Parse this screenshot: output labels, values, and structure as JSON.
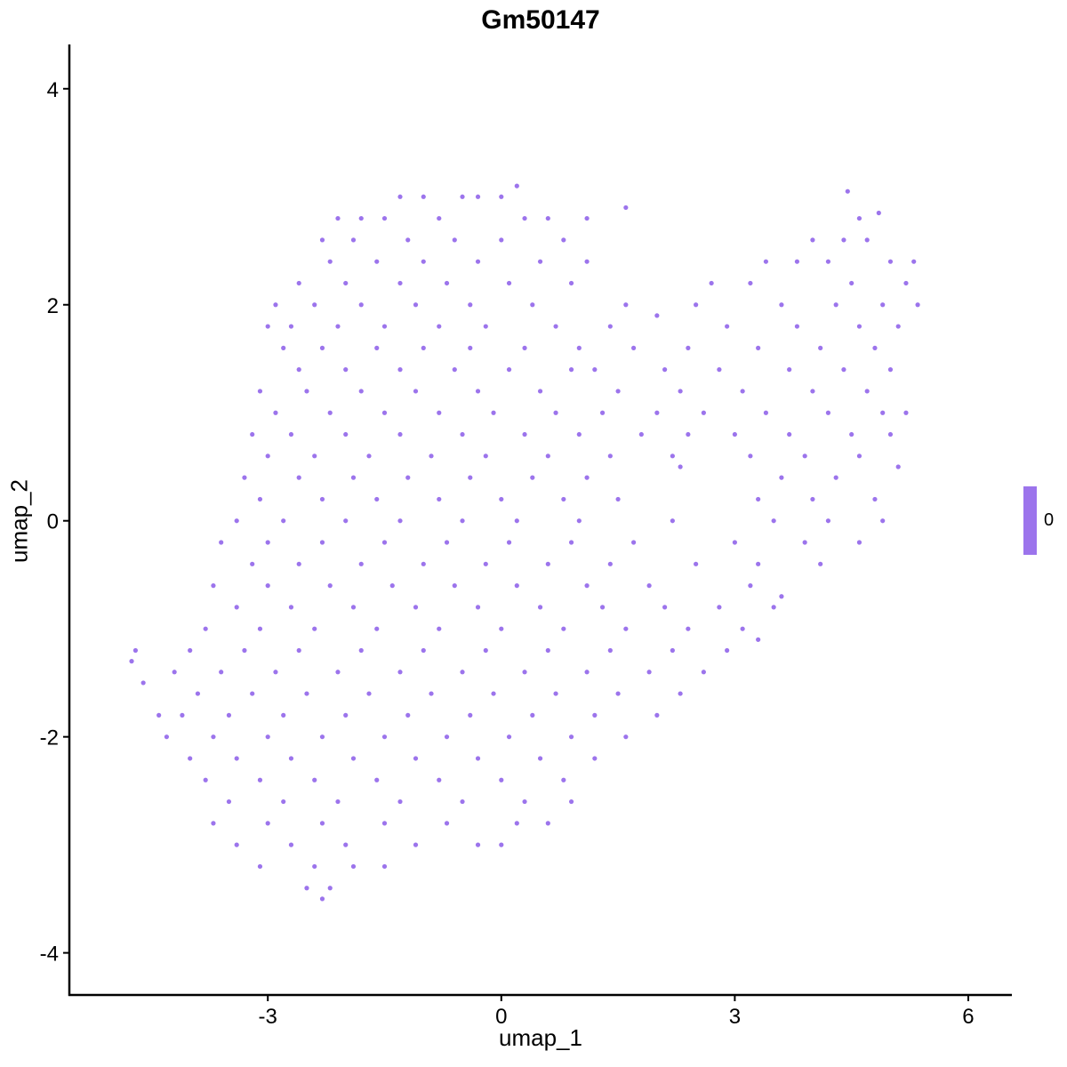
{
  "chart_data": {
    "type": "scatter",
    "title": "Gm50147",
    "xlabel": "umap_1",
    "ylabel": "umap_2",
    "xlim": [
      -5.55,
      6.56
    ],
    "ylim": [
      -4.39,
      4.41
    ],
    "xticks": [
      -3,
      0,
      3,
      6
    ],
    "yticks": [
      -4,
      -2,
      0,
      2,
      4
    ],
    "xtick_labels": [
      "-3",
      "0",
      "3",
      "6"
    ],
    "ytick_labels": [
      "-4",
      "-2",
      "0",
      "2",
      "4"
    ],
    "grid": false,
    "point_color": "#9C74EC",
    "legend": {
      "position": "right",
      "type": "colorbar",
      "labels": [
        "0"
      ],
      "color": "#9C74EC"
    },
    "points": [
      [
        -4.7,
        -1.2
      ],
      [
        -4.75,
        -1.3
      ],
      [
        -4.6,
        -1.5
      ],
      [
        -4.4,
        -1.8
      ],
      [
        -1.0,
        3.0
      ],
      [
        -0.5,
        3.0
      ],
      [
        0.0,
        3.0
      ],
      [
        0.2,
        3.1
      ],
      [
        -1.3,
        3.0
      ],
      [
        -0.3,
        3.0
      ],
      [
        4.45,
        3.05
      ],
      [
        -2.1,
        2.8
      ],
      [
        -1.8,
        2.8
      ],
      [
        -1.5,
        2.8
      ],
      [
        -0.8,
        2.8
      ],
      [
        0.3,
        2.8
      ],
      [
        0.6,
        2.8
      ],
      [
        1.1,
        2.8
      ],
      [
        1.6,
        2.9
      ],
      [
        4.6,
        2.8
      ],
      [
        4.85,
        2.85
      ],
      [
        -2.3,
        2.6
      ],
      [
        -1.9,
        2.6
      ],
      [
        -1.2,
        2.6
      ],
      [
        -0.6,
        2.6
      ],
      [
        0.0,
        2.6
      ],
      [
        0.8,
        2.6
      ],
      [
        4.0,
        2.6
      ],
      [
        4.4,
        2.6
      ],
      [
        4.7,
        2.6
      ],
      [
        -2.2,
        2.4
      ],
      [
        -1.6,
        2.4
      ],
      [
        -1.0,
        2.4
      ],
      [
        -0.3,
        2.4
      ],
      [
        0.5,
        2.4
      ],
      [
        1.1,
        2.4
      ],
      [
        3.4,
        2.4
      ],
      [
        3.8,
        2.4
      ],
      [
        4.2,
        2.4
      ],
      [
        5.0,
        2.4
      ],
      [
        5.3,
        2.4
      ],
      [
        -2.6,
        2.2
      ],
      [
        -2.0,
        2.2
      ],
      [
        -1.3,
        2.2
      ],
      [
        -0.7,
        2.2
      ],
      [
        0.1,
        2.2
      ],
      [
        0.9,
        2.2
      ],
      [
        2.7,
        2.2
      ],
      [
        3.2,
        2.2
      ],
      [
        4.5,
        2.2
      ],
      [
        5.2,
        2.2
      ],
      [
        -2.9,
        2.0
      ],
      [
        -2.4,
        2.0
      ],
      [
        -1.8,
        2.0
      ],
      [
        -1.1,
        2.0
      ],
      [
        -0.4,
        2.0
      ],
      [
        0.4,
        2.0
      ],
      [
        1.6,
        2.0
      ],
      [
        2.5,
        2.0
      ],
      [
        3.6,
        2.0
      ],
      [
        4.3,
        2.0
      ],
      [
        4.9,
        2.0
      ],
      [
        5.35,
        2.0
      ],
      [
        -3.0,
        1.8
      ],
      [
        -2.7,
        1.8
      ],
      [
        -2.1,
        1.8
      ],
      [
        -1.5,
        1.8
      ],
      [
        -0.8,
        1.8
      ],
      [
        -0.2,
        1.8
      ],
      [
        0.7,
        1.8
      ],
      [
        1.4,
        1.8
      ],
      [
        2.0,
        1.9
      ],
      [
        2.9,
        1.8
      ],
      [
        3.8,
        1.8
      ],
      [
        4.6,
        1.8
      ],
      [
        5.1,
        1.8
      ],
      [
        -2.8,
        1.6
      ],
      [
        -2.3,
        1.6
      ],
      [
        -1.6,
        1.6
      ],
      [
        -1.0,
        1.6
      ],
      [
        -0.4,
        1.6
      ],
      [
        0.3,
        1.6
      ],
      [
        1.0,
        1.6
      ],
      [
        1.7,
        1.6
      ],
      [
        2.4,
        1.6
      ],
      [
        3.3,
        1.6
      ],
      [
        4.1,
        1.6
      ],
      [
        4.8,
        1.6
      ],
      [
        -2.6,
        1.4
      ],
      [
        -2.0,
        1.4
      ],
      [
        -1.3,
        1.4
      ],
      [
        -0.6,
        1.4
      ],
      [
        0.1,
        1.4
      ],
      [
        0.9,
        1.4
      ],
      [
        1.2,
        1.4
      ],
      [
        2.1,
        1.4
      ],
      [
        2.8,
        1.4
      ],
      [
        3.7,
        1.4
      ],
      [
        4.4,
        1.4
      ],
      [
        5.0,
        1.4
      ],
      [
        -3.1,
        1.2
      ],
      [
        -2.5,
        1.2
      ],
      [
        -1.8,
        1.2
      ],
      [
        -1.1,
        1.2
      ],
      [
        -0.3,
        1.2
      ],
      [
        0.5,
        1.2
      ],
      [
        1.5,
        1.2
      ],
      [
        2.3,
        1.2
      ],
      [
        3.1,
        1.2
      ],
      [
        4.0,
        1.2
      ],
      [
        4.7,
        1.2
      ],
      [
        -2.9,
        1.0
      ],
      [
        -2.2,
        1.0
      ],
      [
        -1.5,
        1.0
      ],
      [
        -0.8,
        1.0
      ],
      [
        -0.1,
        1.0
      ],
      [
        0.7,
        1.0
      ],
      [
        1.3,
        1.0
      ],
      [
        2.0,
        1.0
      ],
      [
        2.6,
        1.0
      ],
      [
        3.4,
        1.0
      ],
      [
        4.2,
        1.0
      ],
      [
        4.9,
        1.0
      ],
      [
        5.2,
        1.0
      ],
      [
        -3.2,
        0.8
      ],
      [
        -2.7,
        0.8
      ],
      [
        -2.0,
        0.8
      ],
      [
        -1.3,
        0.8
      ],
      [
        -0.5,
        0.8
      ],
      [
        0.3,
        0.8
      ],
      [
        1.0,
        0.8
      ],
      [
        1.8,
        0.8
      ],
      [
        2.4,
        0.8
      ],
      [
        3.0,
        0.8
      ],
      [
        3.7,
        0.8
      ],
      [
        4.5,
        0.8
      ],
      [
        5.0,
        0.8
      ],
      [
        -3.0,
        0.6
      ],
      [
        -2.4,
        0.6
      ],
      [
        -1.7,
        0.6
      ],
      [
        -0.9,
        0.6
      ],
      [
        -0.2,
        0.6
      ],
      [
        0.6,
        0.6
      ],
      [
        1.4,
        0.6
      ],
      [
        2.2,
        0.6
      ],
      [
        3.2,
        0.6
      ],
      [
        3.9,
        0.6
      ],
      [
        4.6,
        0.6
      ],
      [
        -3.3,
        0.4
      ],
      [
        -2.6,
        0.4
      ],
      [
        -1.9,
        0.4
      ],
      [
        -1.2,
        0.4
      ],
      [
        -0.4,
        0.4
      ],
      [
        0.4,
        0.4
      ],
      [
        1.1,
        0.4
      ],
      [
        2.3,
        0.5
      ],
      [
        3.6,
        0.4
      ],
      [
        4.3,
        0.4
      ],
      [
        5.1,
        0.5
      ],
      [
        -3.1,
        0.2
      ],
      [
        -2.3,
        0.2
      ],
      [
        -1.6,
        0.2
      ],
      [
        -0.8,
        0.2
      ],
      [
        0.0,
        0.2
      ],
      [
        0.8,
        0.2
      ],
      [
        1.5,
        0.2
      ],
      [
        3.3,
        0.2
      ],
      [
        4.0,
        0.2
      ],
      [
        4.8,
        0.2
      ],
      [
        -3.4,
        0.0
      ],
      [
        -2.8,
        0.0
      ],
      [
        -2.0,
        0.0
      ],
      [
        -1.3,
        0.0
      ],
      [
        -0.5,
        0.0
      ],
      [
        0.2,
        0.0
      ],
      [
        1.0,
        0.0
      ],
      [
        2.2,
        0.0
      ],
      [
        3.5,
        0.0
      ],
      [
        4.2,
        0.0
      ],
      [
        4.9,
        0.0
      ],
      [
        -3.6,
        -0.2
      ],
      [
        -3.0,
        -0.2
      ],
      [
        -2.3,
        -0.2
      ],
      [
        -1.5,
        -0.2
      ],
      [
        -0.7,
        -0.2
      ],
      [
        0.1,
        -0.2
      ],
      [
        0.9,
        -0.2
      ],
      [
        1.7,
        -0.2
      ],
      [
        3.0,
        -0.2
      ],
      [
        3.9,
        -0.2
      ],
      [
        4.6,
        -0.2
      ],
      [
        -3.2,
        -0.4
      ],
      [
        -2.6,
        -0.4
      ],
      [
        -1.8,
        -0.4
      ],
      [
        -1.0,
        -0.4
      ],
      [
        -0.2,
        -0.4
      ],
      [
        0.6,
        -0.4
      ],
      [
        1.4,
        -0.4
      ],
      [
        2.5,
        -0.4
      ],
      [
        3.3,
        -0.4
      ],
      [
        4.1,
        -0.4
      ],
      [
        -3.7,
        -0.6
      ],
      [
        -3.0,
        -0.6
      ],
      [
        -2.2,
        -0.6
      ],
      [
        -1.4,
        -0.6
      ],
      [
        -0.6,
        -0.6
      ],
      [
        0.2,
        -0.6
      ],
      [
        1.1,
        -0.6
      ],
      [
        1.9,
        -0.6
      ],
      [
        3.2,
        -0.6
      ],
      [
        3.6,
        -0.7
      ],
      [
        -3.4,
        -0.8
      ],
      [
        -2.7,
        -0.8
      ],
      [
        -1.9,
        -0.8
      ],
      [
        -1.1,
        -0.8
      ],
      [
        -0.3,
        -0.8
      ],
      [
        0.5,
        -0.8
      ],
      [
        1.3,
        -0.8
      ],
      [
        2.1,
        -0.8
      ],
      [
        2.8,
        -0.8
      ],
      [
        3.5,
        -0.8
      ],
      [
        -3.8,
        -1.0
      ],
      [
        -3.1,
        -1.0
      ],
      [
        -2.4,
        -1.0
      ],
      [
        -1.6,
        -1.0
      ],
      [
        -0.8,
        -1.0
      ],
      [
        0.0,
        -1.0
      ],
      [
        0.8,
        -1.0
      ],
      [
        1.6,
        -1.0
      ],
      [
        2.4,
        -1.0
      ],
      [
        3.1,
        -1.0
      ],
      [
        -4.0,
        -1.2
      ],
      [
        -3.3,
        -1.2
      ],
      [
        -2.6,
        -1.2
      ],
      [
        -1.8,
        -1.2
      ],
      [
        -1.0,
        -1.2
      ],
      [
        -0.2,
        -1.2
      ],
      [
        0.6,
        -1.2
      ],
      [
        1.4,
        -1.2
      ],
      [
        2.2,
        -1.2
      ],
      [
        2.9,
        -1.2
      ],
      [
        3.3,
        -1.1
      ],
      [
        -4.2,
        -1.4
      ],
      [
        -3.6,
        -1.4
      ],
      [
        -2.9,
        -1.4
      ],
      [
        -2.1,
        -1.4
      ],
      [
        -1.3,
        -1.4
      ],
      [
        -0.5,
        -1.4
      ],
      [
        0.3,
        -1.4
      ],
      [
        1.1,
        -1.4
      ],
      [
        1.9,
        -1.4
      ],
      [
        2.6,
        -1.4
      ],
      [
        -3.9,
        -1.6
      ],
      [
        -3.2,
        -1.6
      ],
      [
        -2.5,
        -1.6
      ],
      [
        -1.7,
        -1.6
      ],
      [
        -0.9,
        -1.6
      ],
      [
        -0.1,
        -1.6
      ],
      [
        0.7,
        -1.6
      ],
      [
        1.5,
        -1.6
      ],
      [
        2.3,
        -1.6
      ],
      [
        -4.1,
        -1.8
      ],
      [
        -3.5,
        -1.8
      ],
      [
        -2.8,
        -1.8
      ],
      [
        -2.0,
        -1.8
      ],
      [
        -1.2,
        -1.8
      ],
      [
        -0.4,
        -1.8
      ],
      [
        0.4,
        -1.8
      ],
      [
        1.2,
        -1.8
      ],
      [
        2.0,
        -1.8
      ],
      [
        -4.3,
        -2.0
      ],
      [
        -3.7,
        -2.0
      ],
      [
        -3.0,
        -2.0
      ],
      [
        -2.3,
        -2.0
      ],
      [
        -1.5,
        -2.0
      ],
      [
        -0.7,
        -2.0
      ],
      [
        0.1,
        -2.0
      ],
      [
        0.9,
        -2.0
      ],
      [
        1.6,
        -2.0
      ],
      [
        -4.0,
        -2.2
      ],
      [
        -3.4,
        -2.2
      ],
      [
        -2.7,
        -2.2
      ],
      [
        -1.9,
        -2.2
      ],
      [
        -1.1,
        -2.2
      ],
      [
        -0.3,
        -2.2
      ],
      [
        0.5,
        -2.2
      ],
      [
        1.2,
        -2.2
      ],
      [
        -3.8,
        -2.4
      ],
      [
        -3.1,
        -2.4
      ],
      [
        -2.4,
        -2.4
      ],
      [
        -1.6,
        -2.4
      ],
      [
        -0.8,
        -2.4
      ],
      [
        0.0,
        -2.4
      ],
      [
        0.8,
        -2.4
      ],
      [
        -3.5,
        -2.6
      ],
      [
        -2.8,
        -2.6
      ],
      [
        -2.1,
        -2.6
      ],
      [
        -1.3,
        -2.6
      ],
      [
        -0.5,
        -2.6
      ],
      [
        0.3,
        -2.6
      ],
      [
        0.9,
        -2.6
      ],
      [
        -3.7,
        -2.8
      ],
      [
        -3.0,
        -2.8
      ],
      [
        -2.3,
        -2.8
      ],
      [
        -1.5,
        -2.8
      ],
      [
        -0.7,
        -2.8
      ],
      [
        0.2,
        -2.8
      ],
      [
        0.6,
        -2.8
      ],
      [
        -3.4,
        -3.0
      ],
      [
        -2.7,
        -3.0
      ],
      [
        -2.0,
        -3.0
      ],
      [
        -1.1,
        -3.0
      ],
      [
        -0.3,
        -3.0
      ],
      [
        0.0,
        -3.0
      ],
      [
        -3.1,
        -3.2
      ],
      [
        -2.4,
        -3.2
      ],
      [
        -1.9,
        -3.2
      ],
      [
        -1.5,
        -3.2
      ],
      [
        -2.5,
        -3.4
      ],
      [
        -2.2,
        -3.4
      ],
      [
        -2.3,
        -3.5
      ]
    ]
  }
}
